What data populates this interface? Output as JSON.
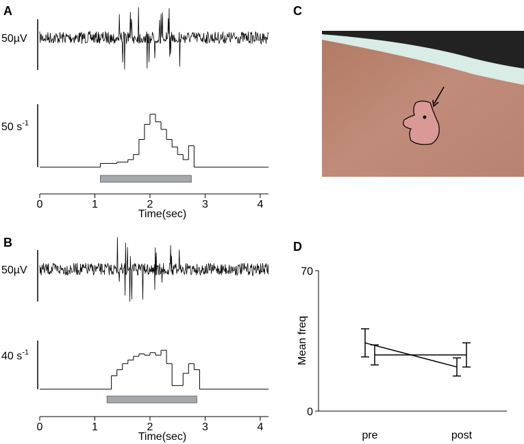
{
  "chart_data": [
    {
      "type": "histogram",
      "panel": "A",
      "raw_scale": "50µV",
      "scale_value": 50,
      "scale_label": "50 s",
      "scale_exponent": "-1",
      "xlim": [
        0,
        4.15
      ],
      "xticks": [
        0,
        1,
        2,
        3,
        4
      ],
      "xlabel": "Time(sec)",
      "bins": [
        1.1,
        1.2,
        1.3,
        1.4,
        1.5,
        1.6,
        1.7,
        1.8,
        1.9,
        2.0,
        2.1,
        2.2,
        2.3,
        2.4,
        2.5,
        2.6,
        2.7,
        2.8
      ],
      "counts": [
        3,
        3,
        3,
        4,
        4,
        6,
        10,
        22,
        34,
        42,
        36,
        30,
        22,
        16,
        10,
        6,
        17
      ],
      "stimulus": [
        1.1,
        2.75
      ],
      "stimulus_color": "#a4a9ab"
    },
    {
      "type": "histogram",
      "panel": "B",
      "raw_scale": "50µV",
      "scale_value": 40,
      "scale_label": "40 s",
      "scale_exponent": "-1",
      "xlim": [
        0,
        4.15
      ],
      "xticks": [
        0,
        1,
        2,
        3,
        4
      ],
      "xlabel": "Time(sec)",
      "bins": [
        1.3,
        1.4,
        1.5,
        1.6,
        1.7,
        1.8,
        1.9,
        2.0,
        2.1,
        2.2,
        2.3,
        2.4,
        2.5,
        2.6,
        2.7,
        2.8,
        2.9
      ],
      "counts": [
        11,
        16,
        21,
        24,
        27,
        29,
        28,
        30,
        28,
        32,
        21,
        3,
        3,
        13,
        21,
        16
      ],
      "stimulus": [
        1.22,
        2.85
      ],
      "stimulus_color": "#a4a9ab"
    },
    {
      "type": "line",
      "panel": "D",
      "ylabel": "Mean freq",
      "categories": [
        "pre",
        "post"
      ],
      "ylim": [
        0,
        70
      ],
      "yticks": [
        0,
        70
      ],
      "series": [
        {
          "color": "#000000",
          "values": [
            34,
            22
          ],
          "errors": [
            7,
            4.5
          ]
        },
        {
          "color": "#000000",
          "values": [
            28,
            28
          ],
          "errors": [
            5,
            6
          ]
        }
      ]
    }
  ],
  "photo": {
    "panel": "C"
  }
}
